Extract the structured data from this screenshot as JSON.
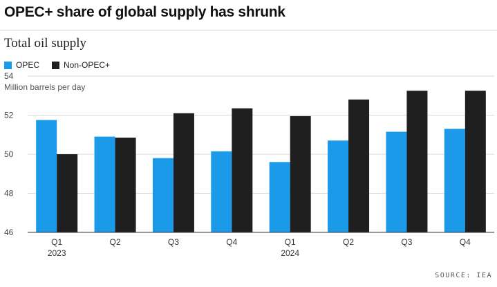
{
  "title": "OPEC+ share of global supply has shrunk",
  "source": "SOURCE: IEA",
  "colors": {
    "opec": "#1a9ae8",
    "non_opec": "#1f1f1f",
    "grid": "#d9d9d9",
    "axis": "#333333"
  },
  "chart_data": {
    "type": "bar",
    "title": "Total oil supply",
    "ylabel": "Million barrels per day",
    "ylim": [
      46,
      54
    ],
    "yticks": [
      46,
      48,
      50,
      52,
      54
    ],
    "categories": [
      "Q1",
      "Q2",
      "Q3",
      "Q4",
      "Q1",
      "Q2",
      "Q3",
      "Q4"
    ],
    "year_labels": [
      "2023",
      "",
      "",
      "",
      "2024",
      "",
      "",
      ""
    ],
    "series": [
      {
        "name": "OPEC",
        "values": [
          51.75,
          50.9,
          49.8,
          50.15,
          49.6,
          50.7,
          51.15,
          51.3
        ]
      },
      {
        "name": "Non-OPEC+",
        "values": [
          50.0,
          50.85,
          52.1,
          52.35,
          51.95,
          52.8,
          53.25,
          53.25
        ]
      }
    ],
    "grid": true,
    "legend_position": "top-left"
  }
}
